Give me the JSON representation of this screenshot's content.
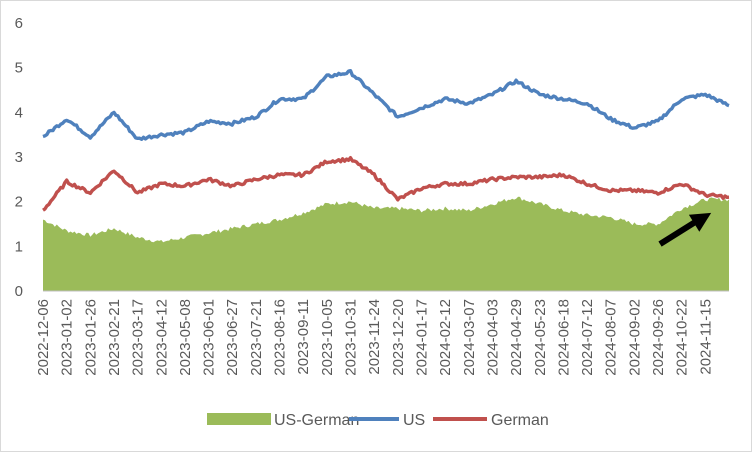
{
  "chart_data": {
    "type": "line",
    "title": "",
    "xlabel": "",
    "ylabel": "",
    "ylim": [
      0,
      6
    ],
    "yticks": [
      0,
      1,
      2,
      3,
      4,
      5,
      6
    ],
    "grid": false,
    "legend_position": "bottom",
    "categories": [
      "2022-12-06",
      "2023-01-02",
      "2023-01-26",
      "2023-02-21",
      "2023-03-17",
      "2023-04-12",
      "2023-05-08",
      "2023-06-01",
      "2023-06-27",
      "2023-07-21",
      "2023-08-16",
      "2023-09-11",
      "2023-10-05",
      "2023-10-31",
      "2023-11-24",
      "2023-12-20",
      "2024-01-17",
      "2024-02-12",
      "2024-03-07",
      "2024-04-03",
      "2024-04-29",
      "2024-05-23",
      "2024-06-18",
      "2024-07-12",
      "2024-08-07",
      "2024-09-02",
      "2024-09-26",
      "2024-10-22",
      "2024-11-15"
    ],
    "series": [
      {
        "name": "US-German",
        "type": "area",
        "color": "#9bbb59",
        "values": [
          1.6,
          1.35,
          1.25,
          1.4,
          1.2,
          1.1,
          1.2,
          1.3,
          1.4,
          1.5,
          1.6,
          1.75,
          1.95,
          2.0,
          1.85,
          1.85,
          1.8,
          1.85,
          1.8,
          1.95,
          2.1,
          1.95,
          1.8,
          1.7,
          1.65,
          1.5,
          1.5,
          1.85,
          2.05
        ]
      },
      {
        "name": "US",
        "type": "line",
        "color": "#4f81bd",
        "values": [
          3.45,
          3.85,
          3.45,
          4.0,
          3.4,
          3.5,
          3.55,
          3.8,
          3.75,
          3.9,
          4.3,
          4.3,
          4.8,
          4.9,
          4.4,
          3.9,
          4.1,
          4.3,
          4.2,
          4.4,
          4.7,
          4.4,
          4.3,
          4.2,
          3.85,
          3.65,
          3.8,
          4.3,
          4.4
        ]
      },
      {
        "name": "German",
        "type": "line",
        "color": "#c0504d",
        "values": [
          1.8,
          2.45,
          2.2,
          2.7,
          2.2,
          2.4,
          2.35,
          2.5,
          2.35,
          2.5,
          2.6,
          2.6,
          2.9,
          2.95,
          2.6,
          2.05,
          2.3,
          2.4,
          2.4,
          2.5,
          2.55,
          2.55,
          2.6,
          2.4,
          2.25,
          2.25,
          2.2,
          2.4,
          2.15
        ]
      }
    ],
    "last_point": {
      "US": 4.15,
      "German": 2.1,
      "US-German": 2.05
    },
    "arrow_annotation": {
      "from": {
        "x": "2024-09-26",
        "y": 1.05
      },
      "to": {
        "x_index": 28.5,
        "y": 1.75
      },
      "color": "#000000"
    }
  }
}
